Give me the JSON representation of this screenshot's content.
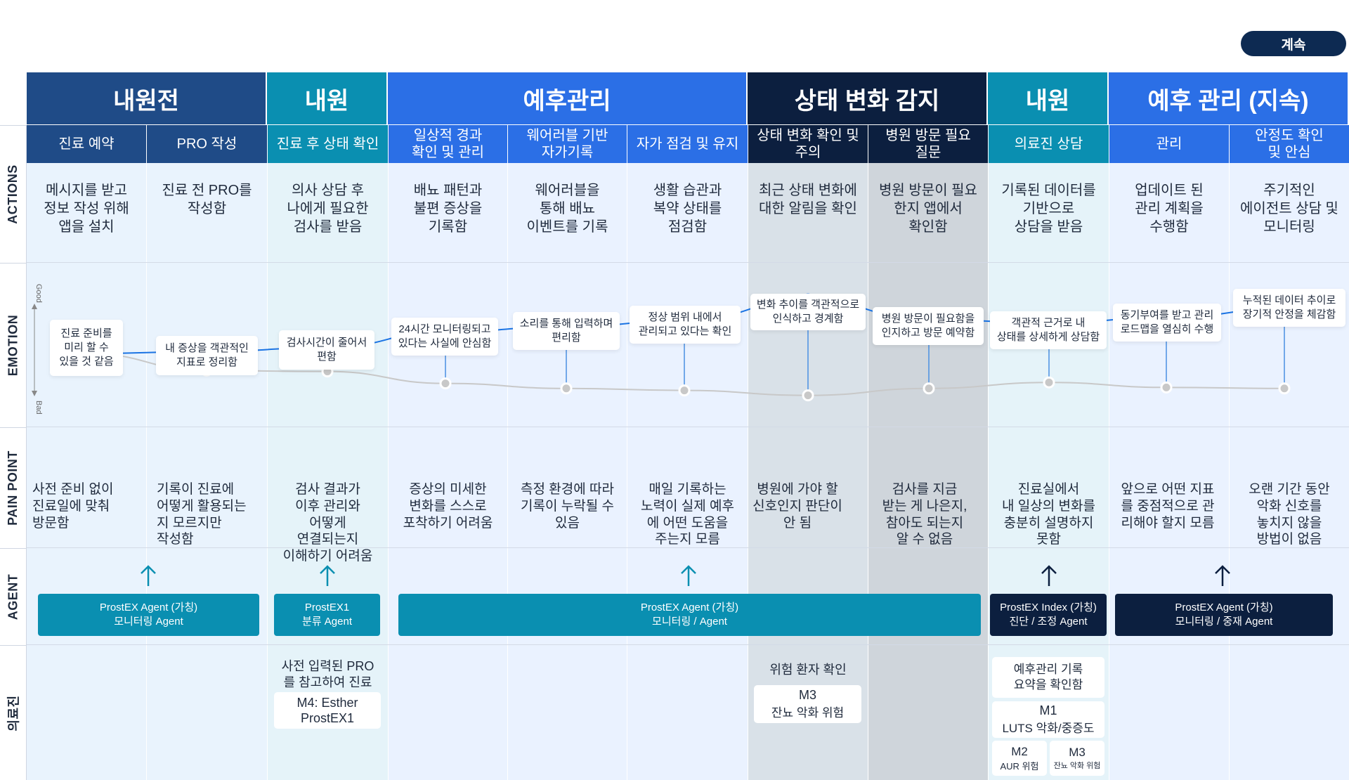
{
  "continue_button": "계속",
  "phases": [
    "내원전",
    "내원",
    "예후관리",
    "상태 변화 감지",
    "내원",
    "예후 관리 (지속)"
  ],
  "subs": [
    "진료 예약",
    "PRO 작성",
    "진료 후 상태 확인",
    "일상적 경과\n확인 및 관리",
    "웨어러블 기반\n자가기록",
    "자가 점검 및 유지",
    "상태 변화 확인 및\n주의",
    "병원 방문 필요\n질문",
    "의료진 상담",
    "관리",
    "안정도 확인\n및 안심"
  ],
  "row_labels": {
    "actions": "ACTIONS",
    "emotion": "EMOTION",
    "pain": "PAIN POINT",
    "agent": "AGENT",
    "staff": "의료진"
  },
  "emotion_axis": {
    "good": "Good",
    "bad": "Bad"
  },
  "actions": [
    "메시지를 받고\n정보 작성 위해\n앱을 설치",
    "진료 전 PRO를\n작성함",
    "의사 상담 후\n나에게 필요한\n검사를 받음",
    "배뇨 패턴과\n불편 증상을\n기록함",
    "웨어러블을\n통해 배뇨\n이벤트를 기록",
    "생활 습관과\n복약 상태를\n점검함",
    "최근 상태 변화에\n대한 알림을 확인",
    "병원 방문이 필요\n한지 앱에서\n확인함",
    "기록된 데이터를\n기반으로\n상담을 받음",
    "업데이트 된\n관리 계획을\n수행함",
    "주기적인\n에이전트 상담 및\n모니터링"
  ],
  "emotions": [
    "진료 준비를\n미리 할 수\n있을 것 같음",
    "내 증상을 객관적인\n지표로 정리함",
    "검사시간이 줄어서\n편함",
    "24시간 모니터링되고\n있다는 사실에 안심함",
    "소리를 통해 입력하며\n편리함",
    "정상 범위 내에서\n관리되고 있다는 확인",
    "변화 추이를 객관적으로\n인식하고 경계함",
    "병원 방문이 필요함을\n인지하고 방문 예약함",
    "객관적 근거로 내\n상태를 상세하게 상담함",
    "동기부여를 받고 관리\n로드맵을 열심히 수행",
    "누적된 데이터 추이로\n장기적 안정을 체감함"
  ],
  "pain_points": [
    "사전 준비 없이\n진료일에 맞춰\n방문함",
    "기록이 진료에\n어떻게 활용되는\n지 모르지만\n작성함",
    "검사 결과가\n이후 관리와\n어떻게\n연결되는지\n이해하기 어려움",
    "증상의 미세한\n변화를 스스로\n포착하기 어려움",
    "측정 환경에 따라\n기록이 누락될 수\n있음",
    "매일 기록하는\n노력이 실제 예후\n에 어떤 도움을\n주는지 모름",
    "병원에 가야 할\n신호인지 판단이\n안 됨",
    "검사를 지금\n받는 게 나은지,\n참아도 되는지\n알 수 없음",
    "진료실에서\n내 일상의 변화를\n충분히 설명하지\n못함",
    "앞으로 어떤 지표\n를 중점적으로 관\n리해야 할지 모름",
    "오랜 기간 동안\n악화 신호를\n놓치지 않을\n방법이 없음"
  ],
  "agents": [
    {
      "title": "ProstEX Agent (가칭)",
      "sub": "모니터링 Agent"
    },
    {
      "title": "ProstEX1",
      "sub": "분류 Agent"
    },
    {
      "title": "ProstEX Agent (가칭)",
      "sub": "모니터링 /  Agent"
    },
    {
      "title": "ProstEX Index (가칭)",
      "sub": "진단 / 조정 Agent"
    },
    {
      "title": "ProstEX Agent (가칭)",
      "sub": "모니터링 / 중재 Agent"
    }
  ],
  "staff": {
    "pre_pro": "사전 입력된 PRO\n를 참고하여 진료",
    "m4": "M4: Esther\nProstEX1",
    "risk_check": "위험 환자 확인",
    "m3_a_title": "M3",
    "m3_a_sub": "잔뇨 악화 위험",
    "summary": "예후관리 기록\n요약을 확인함",
    "m1_title": "M1",
    "m1_sub": "LUTS 악화/중증도",
    "m2_title": "M2",
    "m2_sub": "AUR 위험",
    "m3_b_title": "M3",
    "m3_b_sub": "잔뇨 악화 위험"
  },
  "colors": {
    "navy": "#1f4b87",
    "teal": "#0a8fb1",
    "blue": "#2b6fe6",
    "dark": "#0c1f3f",
    "line_blue": "#1b74e4",
    "line_gray": "#c8c8c8"
  },
  "chart_data": {
    "type": "line",
    "title": "",
    "xlabel": "",
    "ylabel": "",
    "categories": [
      "진료 예약",
      "PRO 작성",
      "진료 후 상태 확인",
      "일상적 경과 확인 및 관리",
      "웨어러블 기반 자가기록",
      "자가 점검 및 유지",
      "상태 변화 확인 및 주의",
      "병원 방문 필요 질문",
      "의료진 상담",
      "관리",
      "안정도 확인 및 안심"
    ],
    "series": [
      {
        "values": [
          0.3,
          0.32,
          0.36,
          0.52,
          0.57,
          0.63,
          0.84,
          0.64,
          0.61,
          0.66,
          0.75
        ]
      },
      {
        "values": [
          0.3,
          0.13,
          0.12,
          0.0,
          -0.05,
          -0.07,
          -0.12,
          -0.05,
          0.01,
          -0.04,
          -0.05
        ]
      }
    ],
    "ylim": [
      -0.2,
      1.0
    ]
  }
}
